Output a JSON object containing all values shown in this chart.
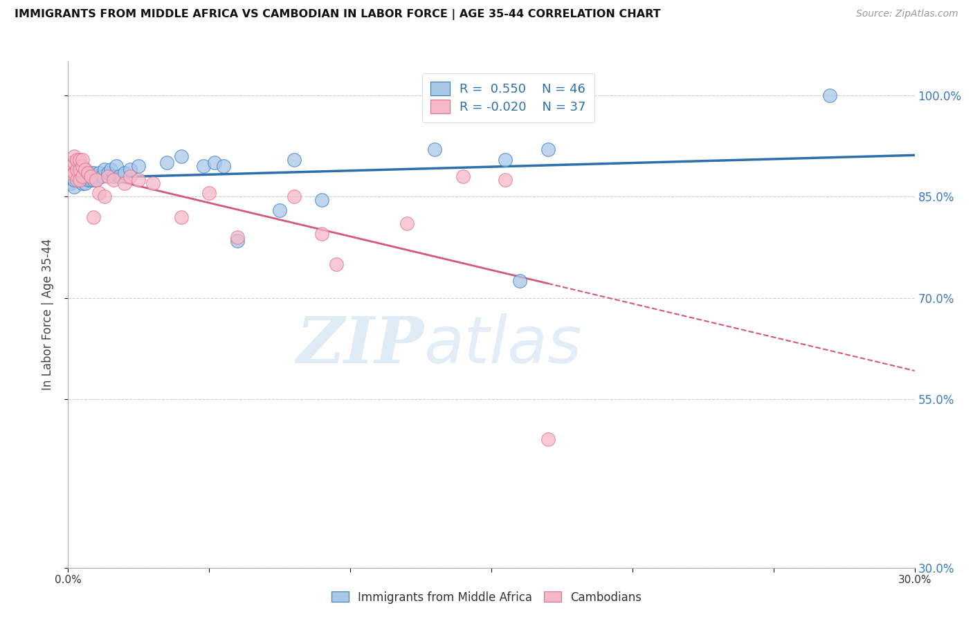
{
  "title": "IMMIGRANTS FROM MIDDLE AFRICA VS CAMBODIAN IN LABOR FORCE | AGE 35-44 CORRELATION CHART",
  "source": "Source: ZipAtlas.com",
  "ylabel": "In Labor Force | Age 35-44",
  "xlim": [
    0.0,
    0.3
  ],
  "ylim": [
    0.3,
    1.05
  ],
  "xticks": [
    0.0,
    0.05,
    0.1,
    0.15,
    0.2,
    0.25,
    0.3
  ],
  "yticks": [
    0.3,
    0.55,
    0.7,
    0.85,
    1.0
  ],
  "yticklabels": [
    "30.0%",
    "55.0%",
    "70.0%",
    "85.0%",
    "100.0%"
  ],
  "R_blue": 0.55,
  "N_blue": 46,
  "R_pink": -0.02,
  "N_pink": 37,
  "blue_fill": "#a8c8e8",
  "blue_edge": "#3a7abf",
  "pink_fill": "#f4b8c8",
  "pink_edge": "#e07090",
  "blue_line_color": "#2c6fad",
  "pink_line_color": "#d45878",
  "legend_labels": [
    "Immigrants from Middle Africa",
    "Cambodians"
  ],
  "watermark_zip": "ZIP",
  "watermark_atlas": "atlas",
  "blue_scatter_x": [
    0.001,
    0.001,
    0.002,
    0.002,
    0.003,
    0.003,
    0.004,
    0.004,
    0.005,
    0.005,
    0.006,
    0.006,
    0.006,
    0.007,
    0.007,
    0.008,
    0.008,
    0.009,
    0.009,
    0.01,
    0.01,
    0.011,
    0.012,
    0.013,
    0.014,
    0.015,
    0.016,
    0.017,
    0.018,
    0.02,
    0.022,
    0.025,
    0.035,
    0.04,
    0.048,
    0.052,
    0.055,
    0.06,
    0.075,
    0.08,
    0.09,
    0.13,
    0.155,
    0.16,
    0.17,
    0.27
  ],
  "blue_scatter_y": [
    0.87,
    0.88,
    0.865,
    0.875,
    0.88,
    0.895,
    0.875,
    0.885,
    0.87,
    0.88,
    0.87,
    0.88,
    0.89,
    0.875,
    0.885,
    0.875,
    0.885,
    0.875,
    0.885,
    0.88,
    0.875,
    0.885,
    0.88,
    0.89,
    0.885,
    0.89,
    0.88,
    0.895,
    0.88,
    0.885,
    0.89,
    0.895,
    0.9,
    0.91,
    0.895,
    0.9,
    0.895,
    0.785,
    0.83,
    0.905,
    0.845,
    0.92,
    0.905,
    0.725,
    0.92,
    1.0
  ],
  "pink_scatter_x": [
    0.001,
    0.001,
    0.002,
    0.002,
    0.002,
    0.003,
    0.003,
    0.003,
    0.004,
    0.004,
    0.004,
    0.005,
    0.005,
    0.005,
    0.006,
    0.007,
    0.008,
    0.009,
    0.01,
    0.011,
    0.013,
    0.014,
    0.016,
    0.02,
    0.022,
    0.025,
    0.03,
    0.04,
    0.05,
    0.06,
    0.08,
    0.09,
    0.095,
    0.12,
    0.14,
    0.155,
    0.17
  ],
  "pink_scatter_y": [
    0.885,
    0.9,
    0.885,
    0.9,
    0.91,
    0.875,
    0.89,
    0.905,
    0.875,
    0.89,
    0.905,
    0.88,
    0.895,
    0.905,
    0.89,
    0.885,
    0.88,
    0.82,
    0.875,
    0.855,
    0.85,
    0.88,
    0.875,
    0.87,
    0.88,
    0.875,
    0.87,
    0.82,
    0.855,
    0.79,
    0.85,
    0.795,
    0.75,
    0.81,
    0.88,
    0.875,
    0.49
  ]
}
